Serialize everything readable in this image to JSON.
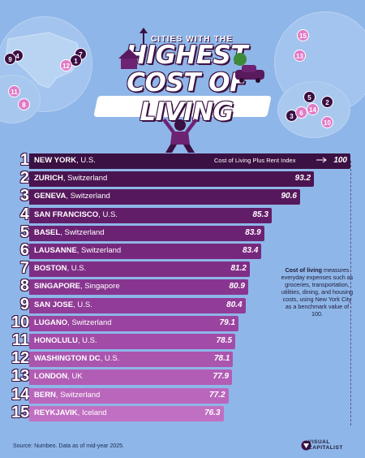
{
  "title": {
    "top": "CITIES WITH THE",
    "line1": "HIGHEST",
    "line2": "COST OF LIVING"
  },
  "chart_data": {
    "type": "bar",
    "orientation": "horizontal",
    "categories": [
      {
        "rank": "1",
        "city": "NEW YORK",
        "country": "U.S."
      },
      {
        "rank": "2",
        "city": "ZURICH",
        "country": "Switzerland"
      },
      {
        "rank": "3",
        "city": "GENEVA",
        "country": "Switzerland"
      },
      {
        "rank": "4",
        "city": "SAN FRANCISCO",
        "country": "U.S."
      },
      {
        "rank": "5",
        "city": "BASEL",
        "country": "Switzerland"
      },
      {
        "rank": "6",
        "city": "LAUSANNE",
        "country": "Switzerland"
      },
      {
        "rank": "7",
        "city": "BOSTON",
        "country": "U.S."
      },
      {
        "rank": "8",
        "city": "SINGAPORE",
        "country": "Singapore"
      },
      {
        "rank": "9",
        "city": "SAN JOSE",
        "country": "U.S."
      },
      {
        "rank": "10",
        "city": "LUGANO",
        "country": "Switzerland"
      },
      {
        "rank": "11",
        "city": "HONOLULU",
        "country": "U.S."
      },
      {
        "rank": "12",
        "city": "WASHINGTON DC",
        "country": "U.S."
      },
      {
        "rank": "13",
        "city": "LONDON",
        "country": "UK"
      },
      {
        "rank": "14",
        "city": "BERN",
        "country": "Switzerland"
      },
      {
        "rank": "15",
        "city": "REYKJAVIK",
        "country": "Iceland"
      }
    ],
    "values": [
      100,
      93.2,
      90.6,
      85.3,
      83.9,
      83.4,
      81.2,
      80.9,
      80.4,
      79.1,
      78.5,
      78.1,
      77.9,
      77.2,
      76.3
    ],
    "value_labels": [
      "100",
      "93.2",
      "90.6",
      "85.3",
      "83.9",
      "83.4",
      "81.2",
      "80.9",
      "80.4",
      "79.1",
      "78.5",
      "78.1",
      "77.9",
      "77.2",
      "76.3"
    ],
    "series_label": "Cost of Living Plus Rent Index",
    "xlim": [
      0,
      100
    ],
    "colors": [
      "#3b1042",
      "#4a1450",
      "#56185c",
      "#621d68",
      "#6c2273",
      "#76287d",
      "#7f2e86",
      "#88358f",
      "#913c97",
      "#9a449f",
      "#a24ca7",
      "#aa55ae",
      "#b25db5",
      "#ba66bc",
      "#c16fc3"
    ]
  },
  "map_markers": {
    "left_globe": [
      "4",
      "9",
      "7",
      "1",
      "12",
      "11",
      "8"
    ],
    "right_globe_top": [
      "15",
      "13"
    ],
    "right_globe_bottom": [
      "5",
      "2",
      "3",
      "6",
      "14",
      "10"
    ]
  },
  "note": {
    "term": "Cost of living",
    "text": " measures everyday expenses such as groceries, transportation, utilities, dining, and housing costs, using New York City as a benchmark value of 100."
  },
  "source": "Source: Numbeo. Data as of mid-year 2025.",
  "brand": {
    "line1": "VISUAL",
    "line2": "CAPITALIST"
  }
}
